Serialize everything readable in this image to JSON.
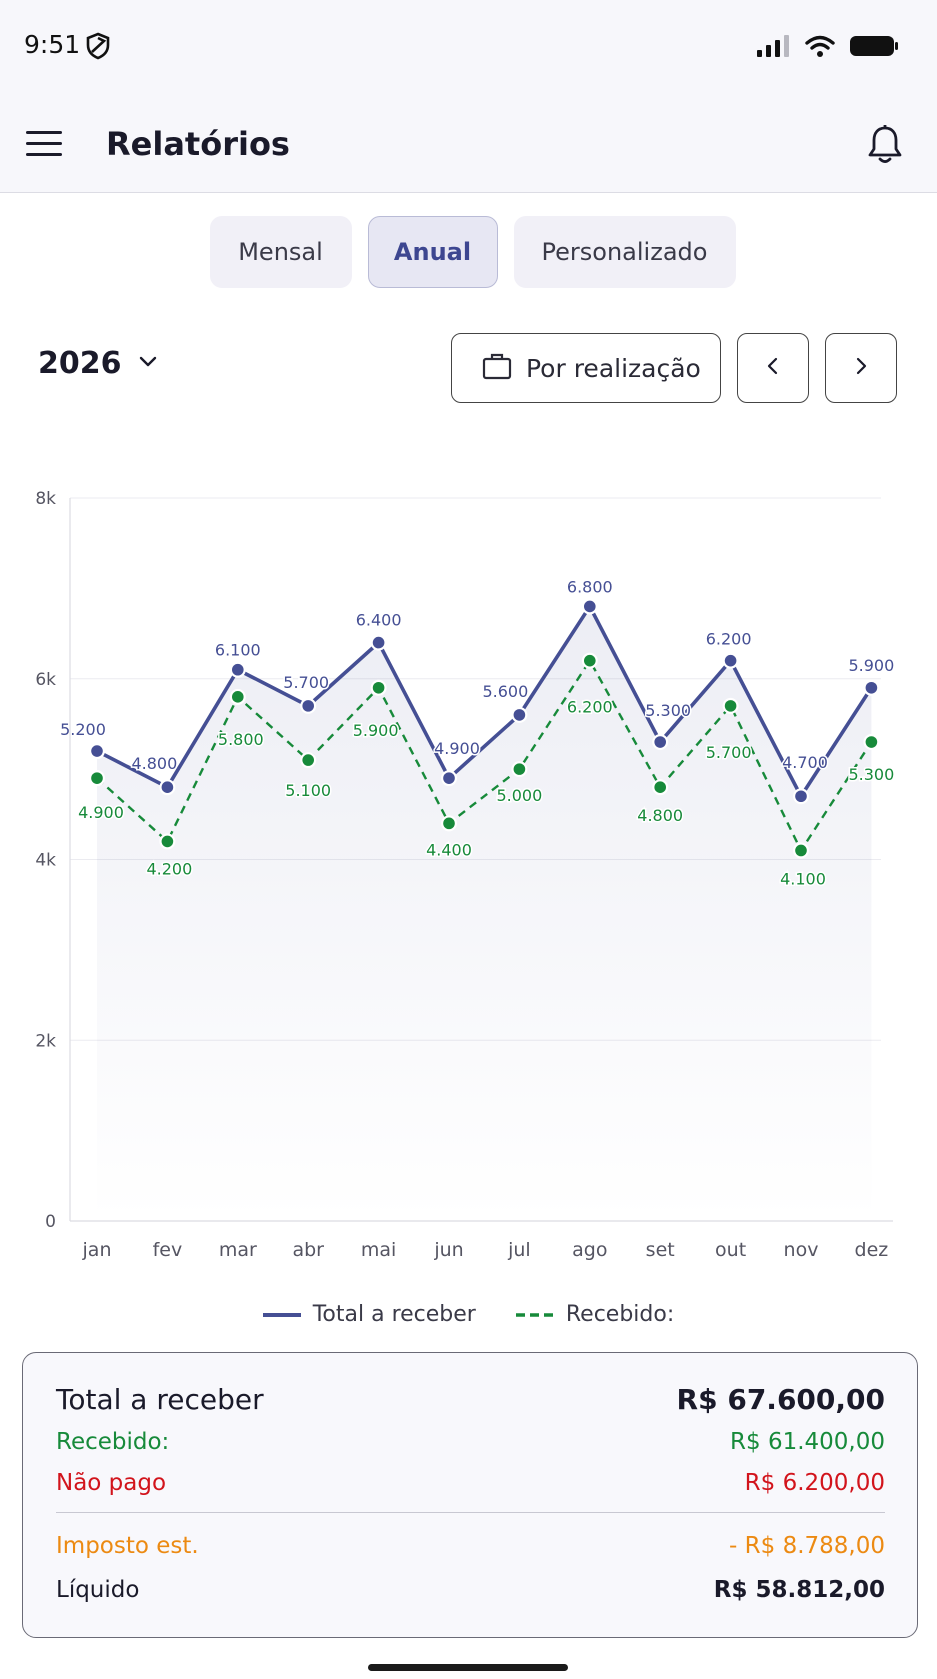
{
  "status_bar": {
    "time": "9:51"
  },
  "header": {
    "title": "Relatórios"
  },
  "tabs": [
    {
      "label": "Mensal",
      "active": false
    },
    {
      "label": "Anual",
      "active": true
    },
    {
      "label": "Personalizado",
      "active": false
    }
  ],
  "controls": {
    "year": "2026",
    "filter_label": "Por realização"
  },
  "chart_data": {
    "type": "line",
    "categories": [
      "jan",
      "fev",
      "mar",
      "abr",
      "mai",
      "jun",
      "jul",
      "ago",
      "set",
      "out",
      "nov",
      "dez"
    ],
    "y_ticks": [
      "0",
      "2k",
      "4k",
      "6k",
      "8k"
    ],
    "ylim": [
      0,
      8000
    ],
    "grid": true,
    "legend_position": "bottom",
    "series": [
      {
        "name": "Total a receber",
        "style": "solid",
        "color": "#454f94",
        "values": [
          5200,
          4800,
          6100,
          5700,
          6400,
          4900,
          5600,
          6800,
          5300,
          6200,
          4700,
          5900
        ],
        "labels": [
          "5.200",
          "4.800",
          "6.100",
          "5.700",
          "6.400",
          "4.900",
          "5.600",
          "6.800",
          "5.300",
          "6.200",
          "4.700",
          "5.900"
        ]
      },
      {
        "name": "Recebido:",
        "style": "dashed",
        "color": "#178a3a",
        "values": [
          4900,
          4200,
          5800,
          5100,
          5900,
          4400,
          5000,
          6200,
          4800,
          5700,
          4100,
          5300
        ],
        "labels": [
          "4.900",
          "4.200",
          "5.800",
          "5.100",
          "5.900",
          "4.400",
          "5.000",
          "6.200",
          "4.800",
          "5.700",
          "4.100",
          "5.300"
        ]
      }
    ]
  },
  "summary": {
    "total_label": "Total a receber",
    "total_value": "R$ 67.600,00",
    "received_label": "Recebido:",
    "received_value": "R$ 61.400,00",
    "unpaid_label": "Não pago",
    "unpaid_value": "R$ 6.200,00",
    "tax_label": "Imposto est.",
    "tax_value": "- R$ 8.788,00",
    "net_label": "Líquido",
    "net_value": "R$ 58.812,00"
  },
  "colors": {
    "primary": "#454f94",
    "received": "#178a3a",
    "unpaid": "#d2141c",
    "tax": "#ec8a12"
  }
}
